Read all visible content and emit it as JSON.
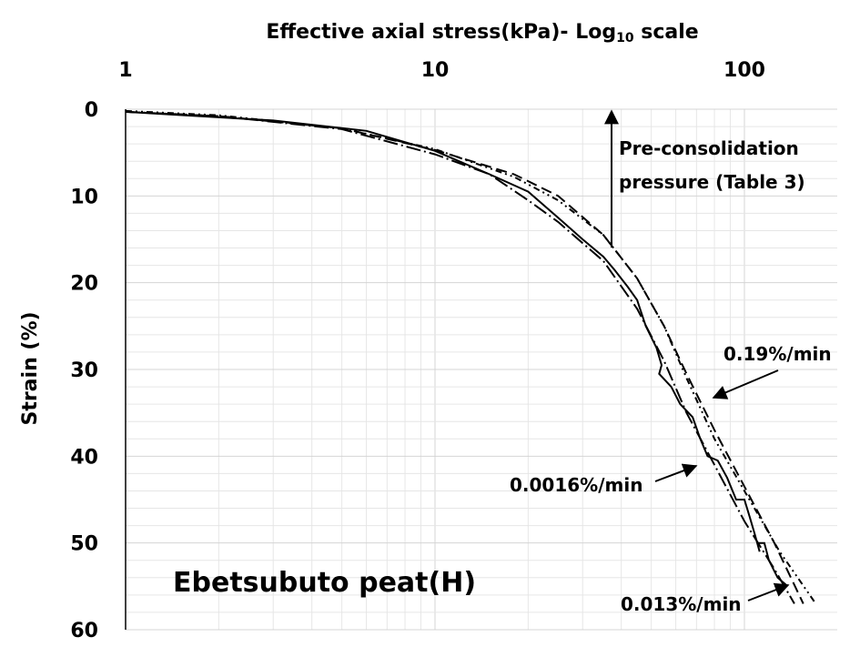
{
  "chart_data": {
    "type": "line",
    "title": "",
    "xlabel_main": "Effective axial stress(kPa)- Log",
    "xlabel_sub": "10",
    "xlabel_tail": " scale",
    "ylabel": "Strain (%)",
    "xscale": "log",
    "xlim": [
      1,
      200
    ],
    "ylim": [
      0,
      60
    ],
    "yinverted": true,
    "x_axis_position": "top",
    "x_ticks": [
      1,
      10,
      100
    ],
    "x_tick_labels": [
      "1",
      "10",
      "100"
    ],
    "y_ticks": [
      0,
      10,
      20,
      30,
      40,
      50,
      60
    ],
    "y_tick_labels": [
      "0",
      "10",
      "20",
      "30",
      "40",
      "50",
      "60"
    ],
    "grid": true,
    "panel_label": "Ebetsubuto peat(H)",
    "annotations": [
      {
        "name": "preconsolidation",
        "lines": [
          "Pre-consolidation",
          "pressure (Table 3)"
        ],
        "arrow_x": 35,
        "arrow_from_strain": 16,
        "arrow_to_strain": 0
      },
      {
        "name": "rate-019",
        "text": "0.19%/min",
        "arrow_to": [
          75,
          33.5
        ]
      },
      {
        "name": "rate-00016",
        "text": "0.0016%/min",
        "arrow_to": [
          68,
          41
        ]
      },
      {
        "name": "rate-0013",
        "text": "0.013%/min",
        "arrow_to": [
          135,
          55.5
        ]
      }
    ],
    "series": [
      {
        "name": "0.19%/min",
        "dash": "7,4,2,4,2,4",
        "points": [
          [
            1,
            0.2
          ],
          [
            2,
            0.7
          ],
          [
            5,
            2.2
          ],
          [
            10,
            4.6
          ],
          [
            18,
            7.8
          ],
          [
            25,
            10.5
          ],
          [
            35,
            14.5
          ],
          [
            45,
            19.5
          ],
          [
            55,
            25
          ],
          [
            65,
            31
          ],
          [
            80,
            38
          ],
          [
            100,
            44
          ],
          [
            130,
            51
          ],
          [
            170,
            57
          ]
        ]
      },
      {
        "name": "0.013%/min",
        "dash": "12,6",
        "points": [
          [
            1,
            0.3
          ],
          [
            2,
            0.8
          ],
          [
            5,
            2.2
          ],
          [
            10,
            4.7
          ],
          [
            18,
            7.5
          ],
          [
            25,
            10
          ],
          [
            35,
            14.5
          ],
          [
            45,
            19.5
          ],
          [
            55,
            25
          ],
          [
            65,
            30.5
          ],
          [
            80,
            37
          ],
          [
            100,
            43.5
          ],
          [
            125,
            50
          ],
          [
            155,
            57
          ]
        ]
      },
      {
        "name": "0.0016%/min",
        "dash": "16,4,2,4",
        "points": [
          [
            1,
            0.3
          ],
          [
            2,
            0.8
          ],
          [
            5,
            2.3
          ],
          [
            10,
            5.2
          ],
          [
            15,
            7.5
          ],
          [
            20,
            10.5
          ],
          [
            25,
            13
          ],
          [
            35,
            17.5
          ],
          [
            45,
            23
          ],
          [
            55,
            29
          ],
          [
            65,
            35
          ],
          [
            80,
            41
          ],
          [
            100,
            47.5
          ],
          [
            125,
            53
          ],
          [
            145,
            57
          ]
        ]
      },
      {
        "name": "0.0016%/min-stepped",
        "dash": "",
        "points": [
          [
            1,
            0.3
          ],
          [
            3,
            1.3
          ],
          [
            6,
            2.5
          ],
          [
            10,
            4.8
          ],
          [
            15,
            7.5
          ],
          [
            20,
            9.5
          ],
          [
            25,
            12.5
          ],
          [
            30,
            15
          ],
          [
            35,
            17
          ],
          [
            38,
            18.5
          ],
          [
            42,
            20.5
          ],
          [
            45,
            22
          ],
          [
            48,
            25
          ],
          [
            52,
            27.5
          ],
          [
            54,
            29.5
          ],
          [
            53,
            30.5
          ],
          [
            58,
            32
          ],
          [
            62,
            34
          ],
          [
            68,
            35.5
          ],
          [
            72,
            38
          ],
          [
            76,
            40
          ],
          [
            82,
            40.5
          ],
          [
            88,
            42.5
          ],
          [
            94,
            45
          ],
          [
            100,
            45
          ],
          [
            104,
            47
          ],
          [
            108,
            49
          ],
          [
            112,
            51
          ],
          [
            110,
            50
          ],
          [
            116,
            50
          ],
          [
            120,
            52
          ],
          [
            128,
            54
          ],
          [
            138,
            55
          ]
        ]
      }
    ]
  }
}
